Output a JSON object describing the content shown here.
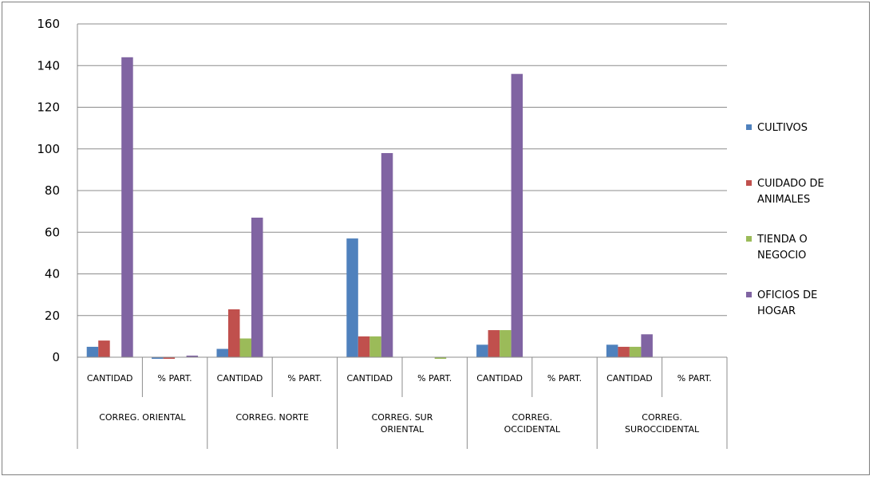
{
  "chart_data": {
    "type": "bar",
    "title": "",
    "xlabel": "",
    "ylabel": "",
    "ylim": [
      0,
      160
    ],
    "yticks": [
      0,
      20,
      40,
      60,
      80,
      100,
      120,
      140,
      160
    ],
    "grid": true,
    "legend_position": "right",
    "groups": [
      {
        "label": "CORREG. ORIENTAL",
        "label_lines": [
          "CORREG. ORIENTAL"
        ]
      },
      {
        "label": "CORREG. NORTE",
        "label_lines": [
          "CORREG. NORTE"
        ]
      },
      {
        "label": "CORREG. SUR ORIENTAL",
        "label_lines": [
          "CORREG. SUR",
          "ORIENTAL"
        ]
      },
      {
        "label": "CORREG. OCCIDENTAL",
        "label_lines": [
          "CORREG.",
          "OCCIDENTAL"
        ]
      },
      {
        "label": "CORREG. SUROCCIDENTAL",
        "label_lines": [
          "CORREG.",
          "SUROCCIDENTAL"
        ]
      }
    ],
    "categories": [
      "CANTIDAD",
      "% PART.",
      "CANTIDAD",
      "% PART.",
      "CANTIDAD",
      "% PART.",
      "CANTIDAD",
      "% PART.",
      "CANTIDAD",
      "% PART."
    ],
    "series": [
      {
        "name": "CULTIVOS",
        "label_lines": [
          "CULTIVOS"
        ],
        "color": "#4f81bd",
        "values": [
          5,
          -0.5,
          4,
          0,
          57,
          0,
          6,
          0,
          6,
          0
        ]
      },
      {
        "name": "CUIDADO DE ANIMALES",
        "label_lines": [
          "CUIDADO DE",
          "ANIMALES"
        ],
        "color": "#c0504d",
        "values": [
          8,
          -0.5,
          23,
          0,
          10,
          0,
          13,
          0,
          5,
          0
        ]
      },
      {
        "name": "TIENDA O NEGOCIO",
        "label_lines": [
          "TIENDA O",
          "NEGOCIO"
        ],
        "color": "#9bbb59",
        "values": [
          0,
          0,
          9,
          0,
          10,
          -0.5,
          13,
          0,
          5,
          0
        ]
      },
      {
        "name": "OFICIOS DE HOGAR",
        "label_lines": [
          "OFICIOS DE",
          "HOGAR"
        ],
        "color": "#8064a2",
        "values": [
          144,
          0.5,
          67,
          0,
          98,
          0,
          136,
          0,
          11,
          0
        ]
      }
    ]
  }
}
